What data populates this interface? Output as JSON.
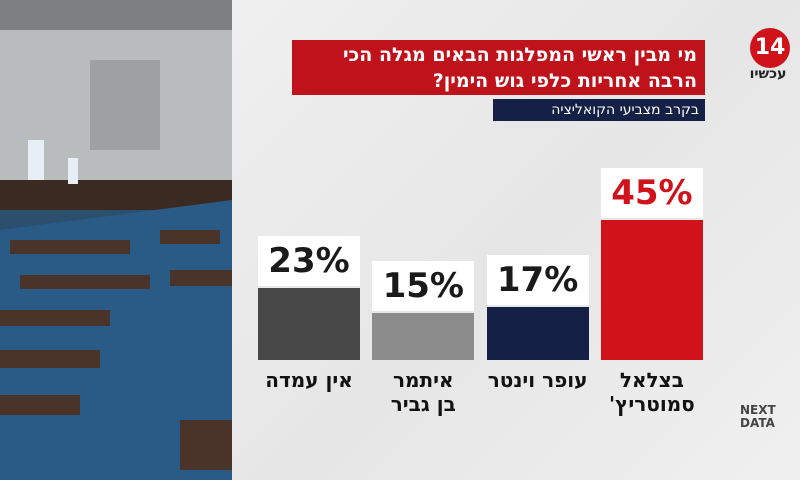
{
  "chart_data": {
    "type": "bar",
    "title": "מי מבין ראשי המפלגות הבאים מגלה הכי הרבה אחריות כלפי גוש הימין?",
    "subtitle": "בקרב מצביעי הקואליציה",
    "categories": [
      "אין עמדה",
      "איתמר בן גביר",
      "עופר וינטר",
      "בצלאל סמוטריץ'"
    ],
    "values": [
      23,
      15,
      17,
      45
    ],
    "value_labels": [
      "23%",
      "15%",
      "17%",
      "45%"
    ],
    "colors": [
      "#474747",
      "#8c8c8c",
      "#142045",
      "#d0121b"
    ],
    "ylim": [
      0,
      45
    ]
  },
  "branding": {
    "channel_number": "14",
    "channel_name": "עכשיו",
    "source_line1": "NEXT",
    "source_line2": "DATA"
  }
}
